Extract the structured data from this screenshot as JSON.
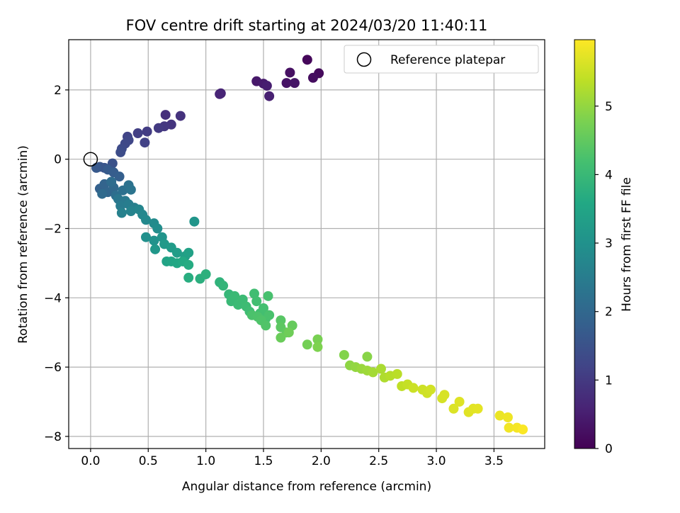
{
  "chart_data": {
    "type": "scatter",
    "title": "FOV centre drift starting at 2024/03/20 11:40:11",
    "xlabel": "Angular distance from reference (arcmin)",
    "ylabel": "Rotation from reference (arcmin)",
    "xlim": [
      -0.19,
      3.94
    ],
    "ylim": [
      -8.35,
      3.45
    ],
    "xticks": [
      "0.0",
      "0.5",
      "1.0",
      "1.5",
      "2.0",
      "2.5",
      "3.0",
      "3.5"
    ],
    "yticks": [
      "−8",
      "−6",
      "−4",
      "−2",
      "0",
      "2"
    ],
    "grid": true,
    "legend": {
      "position": "top-right",
      "label": "Reference platepar"
    },
    "reference_point": {
      "x": 0.0,
      "y": 0.0
    },
    "colorbar": {
      "label": "Hours from first FF file",
      "range": [
        0,
        5.97
      ],
      "ticks": [
        "0",
        "1",
        "2",
        "3",
        "4",
        "5"
      ],
      "colormap": "viridis"
    },
    "points": [
      {
        "x": 1.88,
        "y": 2.87,
        "h": 0.1
      },
      {
        "x": 1.98,
        "y": 2.48,
        "h": 0.15
      },
      {
        "x": 1.93,
        "y": 2.35,
        "h": 0.2
      },
      {
        "x": 1.73,
        "y": 2.5,
        "h": 0.25
      },
      {
        "x": 1.7,
        "y": 2.2,
        "h": 0.3
      },
      {
        "x": 1.77,
        "y": 2.2,
        "h": 0.35
      },
      {
        "x": 1.44,
        "y": 2.25,
        "h": 0.4
      },
      {
        "x": 1.5,
        "y": 2.18,
        "h": 0.45
      },
      {
        "x": 1.53,
        "y": 2.12,
        "h": 0.5
      },
      {
        "x": 1.55,
        "y": 1.82,
        "h": 0.55
      },
      {
        "x": 1.13,
        "y": 1.9,
        "h": 0.6
      },
      {
        "x": 1.12,
        "y": 1.88,
        "h": 0.62
      },
      {
        "x": 0.65,
        "y": 1.28,
        "h": 0.8
      },
      {
        "x": 0.78,
        "y": 1.25,
        "h": 0.85
      },
      {
        "x": 0.7,
        "y": 1.0,
        "h": 0.9
      },
      {
        "x": 0.64,
        "y": 0.95,
        "h": 0.95
      },
      {
        "x": 0.59,
        "y": 0.9,
        "h": 1.0
      },
      {
        "x": 0.49,
        "y": 0.8,
        "h": 1.05
      },
      {
        "x": 0.41,
        "y": 0.75,
        "h": 1.1
      },
      {
        "x": 0.47,
        "y": 0.48,
        "h": 1.15
      },
      {
        "x": 0.32,
        "y": 0.65,
        "h": 1.2
      },
      {
        "x": 0.33,
        "y": 0.55,
        "h": 1.25
      },
      {
        "x": 0.3,
        "y": 0.45,
        "h": 1.3
      },
      {
        "x": 0.27,
        "y": 0.3,
        "h": 1.35
      },
      {
        "x": 0.26,
        "y": 0.2,
        "h": 1.4
      },
      {
        "x": 0.19,
        "y": -0.12,
        "h": 1.5
      },
      {
        "x": 0.12,
        "y": -0.25,
        "h": 1.55
      },
      {
        "x": 0.08,
        "y": -0.22,
        "h": 1.6
      },
      {
        "x": 0.05,
        "y": -0.25,
        "h": 1.65
      },
      {
        "x": 0.15,
        "y": -0.3,
        "h": 1.7
      },
      {
        "x": 0.2,
        "y": -0.38,
        "h": 1.75
      },
      {
        "x": 0.25,
        "y": -0.5,
        "h": 1.8
      },
      {
        "x": 0.08,
        "y": -0.85,
        "h": 1.85
      },
      {
        "x": 0.12,
        "y": -0.72,
        "h": 1.9
      },
      {
        "x": 0.15,
        "y": -0.95,
        "h": 1.95
      },
      {
        "x": 0.2,
        "y": -0.82,
        "h": 2.0
      },
      {
        "x": 0.1,
        "y": -1.0,
        "h": 2.05
      },
      {
        "x": 0.18,
        "y": -0.65,
        "h": 2.1
      },
      {
        "x": 0.22,
        "y": -1.05,
        "h": 2.15
      },
      {
        "x": 0.28,
        "y": -0.9,
        "h": 2.2
      },
      {
        "x": 0.33,
        "y": -0.75,
        "h": 2.25
      },
      {
        "x": 0.35,
        "y": -0.88,
        "h": 2.3
      },
      {
        "x": 0.24,
        "y": -1.15,
        "h": 2.35
      },
      {
        "x": 0.3,
        "y": -1.2,
        "h": 2.4
      },
      {
        "x": 0.26,
        "y": -1.35,
        "h": 2.45
      },
      {
        "x": 0.33,
        "y": -1.3,
        "h": 2.5
      },
      {
        "x": 0.38,
        "y": -1.4,
        "h": 2.55
      },
      {
        "x": 0.27,
        "y": -1.55,
        "h": 2.6
      },
      {
        "x": 0.35,
        "y": -1.5,
        "h": 2.65
      },
      {
        "x": 0.42,
        "y": -1.45,
        "h": 2.7
      },
      {
        "x": 0.45,
        "y": -1.6,
        "h": 2.75
      },
      {
        "x": 0.48,
        "y": -1.75,
        "h": 2.8
      },
      {
        "x": 0.55,
        "y": -1.85,
        "h": 2.85
      },
      {
        "x": 0.58,
        "y": -2.0,
        "h": 2.9
      },
      {
        "x": 0.48,
        "y": -2.25,
        "h": 2.95
      },
      {
        "x": 0.55,
        "y": -2.35,
        "h": 3.0
      },
      {
        "x": 0.62,
        "y": -2.25,
        "h": 3.05
      },
      {
        "x": 0.9,
        "y": -1.8,
        "h": 3.1
      },
      {
        "x": 0.56,
        "y": -2.6,
        "h": 3.15
      },
      {
        "x": 0.64,
        "y": -2.45,
        "h": 3.2
      },
      {
        "x": 0.7,
        "y": -2.55,
        "h": 3.25
      },
      {
        "x": 0.75,
        "y": -2.7,
        "h": 3.3
      },
      {
        "x": 0.82,
        "y": -2.8,
        "h": 3.35
      },
      {
        "x": 0.85,
        "y": -2.7,
        "h": 3.4
      },
      {
        "x": 0.66,
        "y": -2.95,
        "h": 3.45
      },
      {
        "x": 0.7,
        "y": -2.95,
        "h": 3.5
      },
      {
        "x": 0.75,
        "y": -3.0,
        "h": 3.55
      },
      {
        "x": 0.8,
        "y": -2.95,
        "h": 3.6
      },
      {
        "x": 0.85,
        "y": -3.05,
        "h": 3.65
      },
      {
        "x": 0.85,
        "y": -3.42,
        "h": 3.7
      },
      {
        "x": 0.95,
        "y": -3.45,
        "h": 3.75
      },
      {
        "x": 1.0,
        "y": -3.32,
        "h": 3.8
      },
      {
        "x": 1.12,
        "y": -3.55,
        "h": 3.85
      },
      {
        "x": 1.15,
        "y": -3.65,
        "h": 3.9
      },
      {
        "x": 1.2,
        "y": -3.9,
        "h": 3.95
      },
      {
        "x": 1.22,
        "y": -4.1,
        "h": 4.0
      },
      {
        "x": 1.25,
        "y": -3.95,
        "h": 4.02
      },
      {
        "x": 1.28,
        "y": -4.2,
        "h": 4.04
      },
      {
        "x": 1.32,
        "y": -4.05,
        "h": 4.06
      },
      {
        "x": 1.35,
        "y": -4.25,
        "h": 4.08
      },
      {
        "x": 1.38,
        "y": -4.4,
        "h": 4.1
      },
      {
        "x": 1.42,
        "y": -3.88,
        "h": 4.12
      },
      {
        "x": 1.44,
        "y": -4.1,
        "h": 4.14
      },
      {
        "x": 1.47,
        "y": -4.45,
        "h": 4.16
      },
      {
        "x": 1.5,
        "y": -4.3,
        "h": 4.18
      },
      {
        "x": 1.52,
        "y": -4.6,
        "h": 4.2
      },
      {
        "x": 1.54,
        "y": -3.95,
        "h": 4.22
      },
      {
        "x": 1.55,
        "y": -4.5,
        "h": 4.24
      },
      {
        "x": 1.4,
        "y": -4.5,
        "h": 4.26
      },
      {
        "x": 1.45,
        "y": -4.55,
        "h": 4.28
      },
      {
        "x": 1.48,
        "y": -4.65,
        "h": 4.3
      },
      {
        "x": 1.52,
        "y": -4.8,
        "h": 4.32
      },
      {
        "x": 1.65,
        "y": -4.65,
        "h": 4.4
      },
      {
        "x": 1.65,
        "y": -4.85,
        "h": 4.45
      },
      {
        "x": 1.7,
        "y": -5.0,
        "h": 4.5
      },
      {
        "x": 1.75,
        "y": -4.8,
        "h": 4.55
      },
      {
        "x": 1.65,
        "y": -5.15,
        "h": 4.6
      },
      {
        "x": 1.72,
        "y": -5.0,
        "h": 4.65
      },
      {
        "x": 1.88,
        "y": -5.35,
        "h": 4.7
      },
      {
        "x": 1.97,
        "y": -5.2,
        "h": 4.75
      },
      {
        "x": 1.97,
        "y": -5.42,
        "h": 4.8
      },
      {
        "x": 2.2,
        "y": -5.65,
        "h": 4.85
      },
      {
        "x": 2.4,
        "y": -5.7,
        "h": 4.9
      },
      {
        "x": 2.25,
        "y": -5.95,
        "h": 4.95
      },
      {
        "x": 2.3,
        "y": -6.0,
        "h": 5.0
      },
      {
        "x": 2.35,
        "y": -6.05,
        "h": 5.05
      },
      {
        "x": 2.4,
        "y": -6.1,
        "h": 5.1
      },
      {
        "x": 2.45,
        "y": -6.15,
        "h": 5.15
      },
      {
        "x": 2.52,
        "y": -6.05,
        "h": 5.2
      },
      {
        "x": 2.55,
        "y": -6.3,
        "h": 5.25
      },
      {
        "x": 2.6,
        "y": -6.25,
        "h": 5.3
      },
      {
        "x": 2.66,
        "y": -6.2,
        "h": 5.35
      },
      {
        "x": 2.7,
        "y": -6.55,
        "h": 5.4
      },
      {
        "x": 2.75,
        "y": -6.5,
        "h": 5.45
      },
      {
        "x": 2.8,
        "y": -6.6,
        "h": 5.5
      },
      {
        "x": 2.88,
        "y": -6.65,
        "h": 5.52
      },
      {
        "x": 2.92,
        "y": -6.75,
        "h": 5.54
      },
      {
        "x": 2.95,
        "y": -6.65,
        "h": 5.56
      },
      {
        "x": 3.05,
        "y": -6.9,
        "h": 5.6
      },
      {
        "x": 3.07,
        "y": -6.8,
        "h": 5.62
      },
      {
        "x": 3.15,
        "y": -7.2,
        "h": 5.65
      },
      {
        "x": 3.2,
        "y": -7.0,
        "h": 5.68
      },
      {
        "x": 3.28,
        "y": -7.3,
        "h": 5.7
      },
      {
        "x": 3.32,
        "y": -7.2,
        "h": 5.72
      },
      {
        "x": 3.36,
        "y": -7.2,
        "h": 5.74
      },
      {
        "x": 3.55,
        "y": -7.4,
        "h": 5.8
      },
      {
        "x": 3.62,
        "y": -7.45,
        "h": 5.83
      },
      {
        "x": 3.63,
        "y": -7.75,
        "h": 5.86
      },
      {
        "x": 3.7,
        "y": -7.75,
        "h": 5.9
      },
      {
        "x": 3.75,
        "y": -7.8,
        "h": 5.94
      }
    ]
  }
}
